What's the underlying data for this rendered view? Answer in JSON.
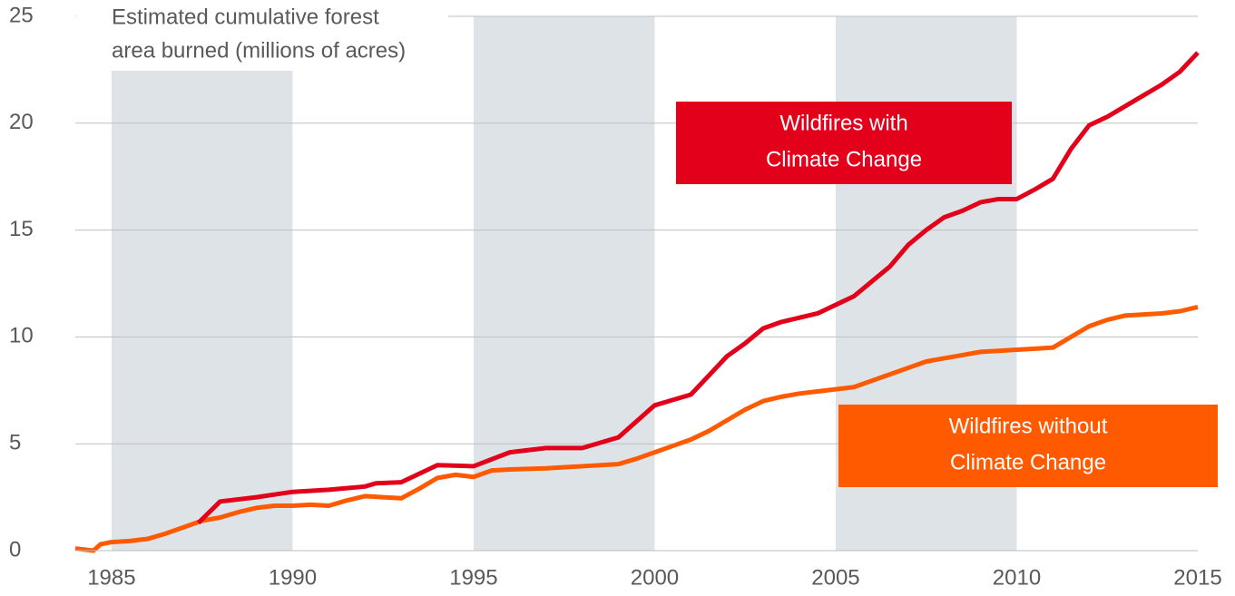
{
  "chart_data": {
    "type": "line",
    "title": [
      "Estimated cumulative forest",
      "area burned (millions of acres)"
    ],
    "xlim": [
      1984,
      2015
    ],
    "xticks": [
      1985,
      1990,
      1995,
      2000,
      2005,
      2010,
      2015
    ],
    "ylim": [
      0,
      25
    ],
    "yticks": [
      0,
      5,
      10,
      15,
      20,
      25
    ],
    "grid": true,
    "shaded_periods": [
      [
        1985,
        1990
      ],
      [
        1995,
        2000
      ],
      [
        2005,
        2010
      ]
    ],
    "series": [
      {
        "name": [
          "Wildfires with",
          "Climate Change"
        ],
        "color": "#e2001a",
        "x": [
          1987.4,
          1988,
          1989,
          1990,
          1991,
          1992,
          1992.3,
          1993,
          1994,
          1995,
          1996,
          1997,
          1998,
          1999,
          2000,
          2000.5,
          2001,
          2001.5,
          2002,
          2002.5,
          2003,
          2003.5,
          2004,
          2004.5,
          2005,
          2005.5,
          2006,
          2006.5,
          2007,
          2007.5,
          2008,
          2008.5,
          2009,
          2009.5,
          2010,
          2010.5,
          2011,
          2011.5,
          2012,
          2012.5,
          2013,
          2013.5,
          2014,
          2014.5,
          2015
        ],
        "values": [
          1.3,
          2.3,
          2.5,
          2.75,
          2.85,
          3.0,
          3.15,
          3.2,
          4.0,
          3.95,
          4.6,
          4.8,
          4.8,
          5.3,
          6.8,
          7.05,
          7.3,
          8.2,
          9.1,
          9.7,
          10.4,
          10.7,
          10.9,
          11.1,
          11.5,
          11.9,
          12.6,
          13.3,
          14.3,
          15.0,
          15.6,
          15.9,
          16.3,
          16.45,
          16.45,
          16.9,
          17.4,
          18.8,
          19.9,
          20.3,
          20.8,
          21.3,
          21.8,
          22.4,
          23.3
        ]
      },
      {
        "name": [
          "Wildfires without",
          "Climate Change"
        ],
        "color": "#ff5a00",
        "x": [
          1984,
          1984.5,
          1984.7,
          1985,
          1985.5,
          1986,
          1986.5,
          1987,
          1987.5,
          1988,
          1988.5,
          1989,
          1989.5,
          1990,
          1990.5,
          1991,
          1991.5,
          1992,
          1992.5,
          1993,
          1993.5,
          1994,
          1994.5,
          1995,
          1995.5,
          1996,
          1997,
          1998,
          1999,
          1999.5,
          2000,
          2000.5,
          2001,
          2001.5,
          2002,
          2002.5,
          2003,
          2003.5,
          2004,
          2004.5,
          2005,
          2005.5,
          2006,
          2006.5,
          2007,
          2007.5,
          2008,
          2008.5,
          2009,
          2009.5,
          2010,
          2010.5,
          2011,
          2011.5,
          2012,
          2012.5,
          2013,
          2014,
          2014.5,
          2015
        ],
        "values": [
          0.1,
          0.0,
          0.3,
          0.4,
          0.45,
          0.55,
          0.8,
          1.1,
          1.4,
          1.55,
          1.8,
          2.0,
          2.1,
          2.1,
          2.15,
          2.1,
          2.35,
          2.55,
          2.5,
          2.45,
          2.9,
          3.4,
          3.55,
          3.45,
          3.75,
          3.8,
          3.85,
          3.95,
          4.05,
          4.3,
          4.6,
          4.9,
          5.2,
          5.6,
          6.1,
          6.6,
          7.0,
          7.2,
          7.35,
          7.45,
          7.55,
          7.65,
          7.95,
          8.25,
          8.55,
          8.85,
          9.0,
          9.15,
          9.3,
          9.35,
          9.4,
          9.45,
          9.5,
          10.0,
          10.5,
          10.8,
          11.0,
          11.1,
          11.2,
          11.4
        ]
      }
    ]
  }
}
